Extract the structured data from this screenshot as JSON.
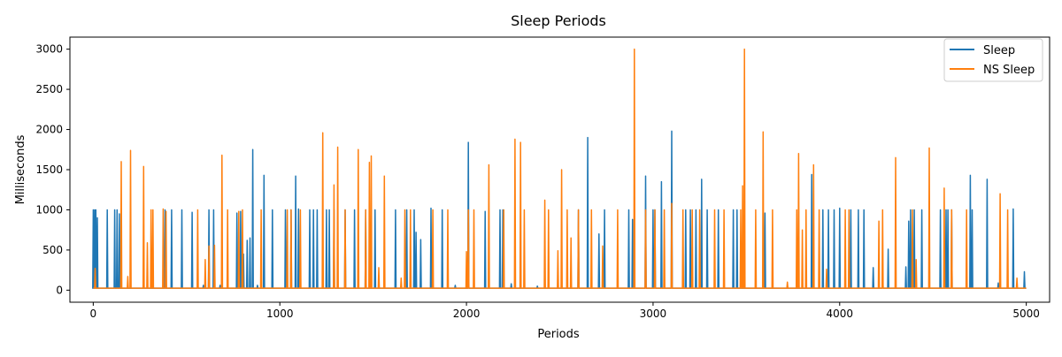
{
  "chart_data": {
    "type": "line",
    "title": "Sleep Periods",
    "xlabel": "Periods",
    "ylabel": "Milliseconds",
    "xlim": [
      -125,
      5125
    ],
    "ylim": [
      -150,
      3150
    ],
    "xticks": [
      0,
      1000,
      2000,
      3000,
      4000,
      5000
    ],
    "yticks": [
      0,
      500,
      1000,
      1500,
      2000,
      2500,
      3000
    ],
    "grid": false,
    "legend_position": "top-right",
    "baseline": 25,
    "series": [
      {
        "name": "Sleep",
        "color": "#1f77b4",
        "points": [
          [
            0,
            1000
          ],
          [
            8,
            1000
          ],
          [
            14,
            1000
          ],
          [
            22,
            900
          ],
          [
            75,
            1000
          ],
          [
            115,
            1000
          ],
          [
            128,
            1000
          ],
          [
            140,
            950
          ],
          [
            385,
            1000
          ],
          [
            420,
            1000
          ],
          [
            475,
            1000
          ],
          [
            530,
            970
          ],
          [
            560,
            60
          ],
          [
            590,
            60
          ],
          [
            620,
            1000
          ],
          [
            645,
            1000
          ],
          [
            680,
            60
          ],
          [
            770,
            960
          ],
          [
            790,
            980
          ],
          [
            805,
            450
          ],
          [
            825,
            620
          ],
          [
            840,
            650
          ],
          [
            855,
            1750
          ],
          [
            880,
            60
          ],
          [
            915,
            1430
          ],
          [
            960,
            1000
          ],
          [
            1030,
            1000
          ],
          [
            1060,
            1000
          ],
          [
            1085,
            1420
          ],
          [
            1100,
            1010
          ],
          [
            1160,
            1000
          ],
          [
            1180,
            1000
          ],
          [
            1200,
            1000
          ],
          [
            1250,
            1000
          ],
          [
            1265,
            1000
          ],
          [
            1290,
            1000
          ],
          [
            1350,
            1000
          ],
          [
            1400,
            1000
          ],
          [
            1460,
            1000
          ],
          [
            1510,
            1000
          ],
          [
            1620,
            1000
          ],
          [
            1680,
            1000
          ],
          [
            1720,
            1000
          ],
          [
            1730,
            720
          ],
          [
            1755,
            630
          ],
          [
            1810,
            1020
          ],
          [
            1870,
            1000
          ],
          [
            1940,
            60
          ],
          [
            2010,
            1840
          ],
          [
            2100,
            980
          ],
          [
            2180,
            1000
          ],
          [
            2195,
            1000
          ],
          [
            2240,
            80
          ],
          [
            2380,
            50
          ],
          [
            2600,
            1000
          ],
          [
            2650,
            1900
          ],
          [
            2710,
            700
          ],
          [
            2740,
            1000
          ],
          [
            2870,
            1000
          ],
          [
            2890,
            880
          ],
          [
            2960,
            1420
          ],
          [
            3000,
            1000
          ],
          [
            3010,
            1000
          ],
          [
            3045,
            1350
          ],
          [
            3100,
            1980
          ],
          [
            3175,
            1000
          ],
          [
            3200,
            1000
          ],
          [
            3230,
            1000
          ],
          [
            3260,
            1380
          ],
          [
            3290,
            1000
          ],
          [
            3350,
            1000
          ],
          [
            3430,
            1000
          ],
          [
            3450,
            1000
          ],
          [
            3600,
            960
          ],
          [
            3850,
            1440
          ],
          [
            3910,
            1000
          ],
          [
            3940,
            1000
          ],
          [
            3970,
            1000
          ],
          [
            4000,
            1020
          ],
          [
            4060,
            1000
          ],
          [
            4100,
            1000
          ],
          [
            4130,
            1000
          ],
          [
            4180,
            280
          ],
          [
            4230,
            180
          ],
          [
            4260,
            510
          ],
          [
            4355,
            290
          ],
          [
            4370,
            860
          ],
          [
            4380,
            1000
          ],
          [
            4400,
            1000
          ],
          [
            4440,
            1000
          ],
          [
            4540,
            1000
          ],
          [
            4570,
            1000
          ],
          [
            4580,
            1000
          ],
          [
            4600,
            1000
          ],
          [
            4700,
            1430
          ],
          [
            4710,
            1000
          ],
          [
            4790,
            1380
          ],
          [
            4850,
            90
          ],
          [
            4930,
            1010
          ],
          [
            4990,
            230
          ]
        ]
      },
      {
        "name": "NS Sleep",
        "color": "#ff7f0e",
        "points": [
          [
            10,
            270
          ],
          [
            150,
            1600
          ],
          [
            185,
            170
          ],
          [
            200,
            1740
          ],
          [
            270,
            1540
          ],
          [
            290,
            590
          ],
          [
            310,
            1000
          ],
          [
            320,
            1000
          ],
          [
            375,
            1010
          ],
          [
            390,
            980
          ],
          [
            560,
            1000
          ],
          [
            600,
            380
          ],
          [
            620,
            550
          ],
          [
            650,
            560
          ],
          [
            690,
            1680
          ],
          [
            720,
            1000
          ],
          [
            780,
            980
          ],
          [
            800,
            1000
          ],
          [
            900,
            1000
          ],
          [
            1040,
            1000
          ],
          [
            1060,
            1000
          ],
          [
            1110,
            1000
          ],
          [
            1230,
            1960
          ],
          [
            1290,
            1310
          ],
          [
            1310,
            1780
          ],
          [
            1350,
            1000
          ],
          [
            1420,
            1750
          ],
          [
            1460,
            1000
          ],
          [
            1480,
            1590
          ],
          [
            1490,
            1670
          ],
          [
            1530,
            280
          ],
          [
            1560,
            1420
          ],
          [
            1650,
            150
          ],
          [
            1670,
            1000
          ],
          [
            1700,
            1000
          ],
          [
            1820,
            1000
          ],
          [
            1900,
            1000
          ],
          [
            2000,
            480
          ],
          [
            2010,
            1000
          ],
          [
            2040,
            1000
          ],
          [
            2120,
            1560
          ],
          [
            2200,
            1000
          ],
          [
            2260,
            1880
          ],
          [
            2290,
            1840
          ],
          [
            2310,
            1000
          ],
          [
            2420,
            1120
          ],
          [
            2440,
            1000
          ],
          [
            2490,
            490
          ],
          [
            2510,
            1500
          ],
          [
            2540,
            1000
          ],
          [
            2560,
            650
          ],
          [
            2600,
            1000
          ],
          [
            2670,
            1000
          ],
          [
            2730,
            550
          ],
          [
            2810,
            1000
          ],
          [
            2900,
            3000
          ],
          [
            2960,
            1000
          ],
          [
            3010,
            1000
          ],
          [
            3060,
            1000
          ],
          [
            3100,
            1080
          ],
          [
            3160,
            1000
          ],
          [
            3210,
            1000
          ],
          [
            3250,
            1000
          ],
          [
            3330,
            1000
          ],
          [
            3380,
            1000
          ],
          [
            3470,
            1000
          ],
          [
            3480,
            1300
          ],
          [
            3490,
            3000
          ],
          [
            3550,
            1000
          ],
          [
            3590,
            1970
          ],
          [
            3640,
            1000
          ],
          [
            3720,
            100
          ],
          [
            3770,
            1000
          ],
          [
            3780,
            1700
          ],
          [
            3800,
            750
          ],
          [
            3820,
            1000
          ],
          [
            3860,
            1560
          ],
          [
            3890,
            1000
          ],
          [
            3930,
            260
          ],
          [
            4030,
            1000
          ],
          [
            4050,
            1000
          ],
          [
            4210,
            860
          ],
          [
            4230,
            1000
          ],
          [
            4300,
            1650
          ],
          [
            4390,
            1000
          ],
          [
            4410,
            380
          ],
          [
            4480,
            1770
          ],
          [
            4560,
            1270
          ],
          [
            4600,
            1000
          ],
          [
            4680,
            1000
          ],
          [
            4860,
            1200
          ],
          [
            4900,
            1000
          ],
          [
            4950,
            150
          ]
        ]
      }
    ]
  }
}
